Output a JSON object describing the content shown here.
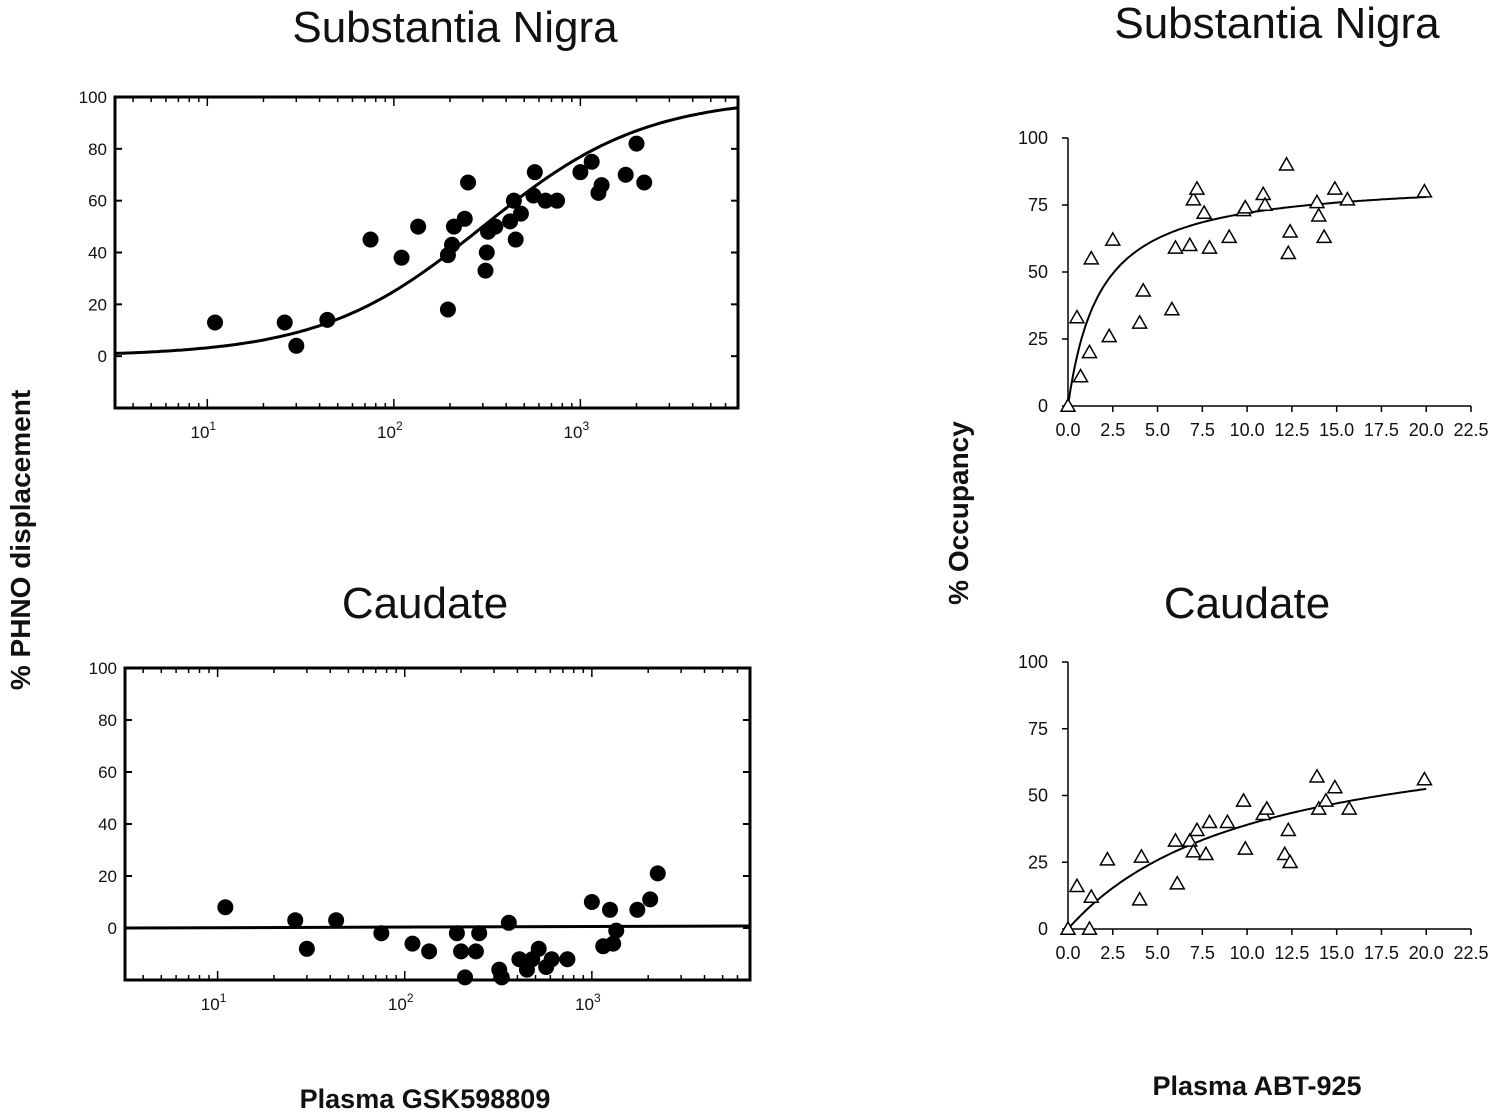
{
  "figure": {
    "left_ylabel": "% PHNO displacement",
    "right_ylabel": "% Occupancy",
    "left_xlabel": "Plasma GSK598809",
    "right_xlabel": "Plasma ABT-925"
  },
  "chart_data": [
    {
      "id": "sn_gsk",
      "type": "scatter",
      "title": "Substantia Nigra",
      "xscale": "log",
      "xlim": [
        3.2,
        7000
      ],
      "ylim": [
        -20,
        100
      ],
      "yticks": [
        0,
        20,
        40,
        60,
        80,
        100
      ],
      "xticks": [
        {
          "value": 10,
          "label": "10",
          "exp": "1"
        },
        {
          "value": 100,
          "label": "10",
          "exp": "2"
        },
        {
          "value": 1000,
          "label": "10",
          "exp": "3"
        }
      ],
      "marker": "filled-circle",
      "points": [
        [
          11,
          13
        ],
        [
          26,
          13
        ],
        [
          30,
          4
        ],
        [
          44,
          14
        ],
        [
          75,
          45
        ],
        [
          110,
          38
        ],
        [
          135,
          50
        ],
        [
          195,
          39
        ],
        [
          195,
          18
        ],
        [
          205,
          43
        ],
        [
          210,
          50
        ],
        [
          240,
          53
        ],
        [
          250,
          67
        ],
        [
          310,
          33
        ],
        [
          315,
          40
        ],
        [
          320,
          48
        ],
        [
          350,
          50
        ],
        [
          420,
          52
        ],
        [
          440,
          60
        ],
        [
          450,
          45
        ],
        [
          480,
          55
        ],
        [
          560,
          62
        ],
        [
          570,
          71
        ],
        [
          650,
          60
        ],
        [
          750,
          60
        ],
        [
          1000,
          71
        ],
        [
          1150,
          75
        ],
        [
          1250,
          63
        ],
        [
          1300,
          66
        ],
        [
          1750,
          70
        ],
        [
          2000,
          82
        ],
        [
          2200,
          67
        ]
      ],
      "curve": {
        "model": "emax",
        "emax": 100,
        "ec50": 300,
        "e0": 0
      }
    },
    {
      "id": "caudate_gsk",
      "type": "scatter",
      "title": "Caudate",
      "xscale": "log",
      "xlim": [
        3.2,
        7000
      ],
      "ylim": [
        -20,
        100
      ],
      "yticks": [
        0,
        20,
        40,
        60,
        80,
        100
      ],
      "xticks": [
        {
          "value": 10,
          "label": "10",
          "exp": "1"
        },
        {
          "value": 100,
          "label": "10",
          "exp": "2"
        },
        {
          "value": 1000,
          "label": "10",
          "exp": "3"
        }
      ],
      "marker": "filled-circle",
      "points": [
        [
          11,
          8
        ],
        [
          26,
          3
        ],
        [
          30,
          -8
        ],
        [
          43,
          3
        ],
        [
          75,
          -2
        ],
        [
          110,
          -6
        ],
        [
          135,
          -9
        ],
        [
          190,
          -2
        ],
        [
          200,
          -9
        ],
        [
          210,
          -19
        ],
        [
          240,
          -9
        ],
        [
          250,
          -2
        ],
        [
          320,
          -16
        ],
        [
          330,
          -19
        ],
        [
          360,
          2
        ],
        [
          410,
          -12
        ],
        [
          450,
          -16
        ],
        [
          480,
          -12
        ],
        [
          520,
          -8
        ],
        [
          570,
          -15
        ],
        [
          610,
          -12
        ],
        [
          740,
          -12
        ],
        [
          1000,
          10
        ],
        [
          1150,
          -7
        ],
        [
          1250,
          7
        ],
        [
          1300,
          -6
        ],
        [
          1350,
          -1
        ],
        [
          1750,
          7
        ],
        [
          2050,
          11
        ],
        [
          2250,
          21
        ]
      ],
      "curve": {
        "model": "flat",
        "e0": 0
      }
    },
    {
      "id": "sn_abt",
      "type": "scatter",
      "title": "Substantia Nigra",
      "xscale": "linear",
      "xlim": [
        0,
        22.5
      ],
      "ylim": [
        0,
        100
      ],
      "yticks": [
        0,
        25,
        50,
        75,
        100
      ],
      "xticks": [
        "0.0",
        "2.5",
        "5.0",
        "7.5",
        "10.0",
        "12.5",
        "15.0",
        "17.5",
        "20.0",
        "22.5"
      ],
      "marker": "open-triangle",
      "points": [
        [
          0,
          0
        ],
        [
          0.5,
          33
        ],
        [
          0.7,
          11
        ],
        [
          1.2,
          20
        ],
        [
          1.3,
          55
        ],
        [
          2.3,
          26
        ],
        [
          2.5,
          62
        ],
        [
          4.0,
          31
        ],
        [
          4.2,
          43
        ],
        [
          5.8,
          36
        ],
        [
          6.0,
          59
        ],
        [
          6.8,
          60
        ],
        [
          7.0,
          77
        ],
        [
          7.2,
          81
        ],
        [
          7.6,
          72
        ],
        [
          7.9,
          59
        ],
        [
          9.0,
          63
        ],
        [
          9.8,
          73
        ],
        [
          9.9,
          74
        ],
        [
          10.9,
          79
        ],
        [
          11.0,
          75
        ],
        [
          12.2,
          90
        ],
        [
          12.3,
          57
        ],
        [
          12.4,
          65
        ],
        [
          13.9,
          76
        ],
        [
          14.0,
          71
        ],
        [
          14.3,
          63
        ],
        [
          14.9,
          81
        ],
        [
          15.6,
          77
        ],
        [
          19.9,
          80
        ]
      ],
      "curve": {
        "model": "emax",
        "emax": 85,
        "ec50": 1.8,
        "xmax": 20
      }
    },
    {
      "id": "caudate_abt",
      "type": "scatter",
      "title": "Caudate",
      "xscale": "linear",
      "xlim": [
        0,
        22.5
      ],
      "ylim": [
        0,
        100
      ],
      "yticks": [
        0,
        25,
        50,
        75,
        100
      ],
      "xticks": [
        "0.0",
        "2.5",
        "5.0",
        "7.5",
        "10.0",
        "12.5",
        "15.0",
        "17.5",
        "20.0",
        "22.5"
      ],
      "marker": "open-triangle",
      "points": [
        [
          0,
          0
        ],
        [
          0.5,
          16
        ],
        [
          1.2,
          0
        ],
        [
          1.3,
          12
        ],
        [
          2.2,
          26
        ],
        [
          4.0,
          11
        ],
        [
          4.1,
          27
        ],
        [
          6.0,
          33
        ],
        [
          6.1,
          17
        ],
        [
          6.8,
          33
        ],
        [
          7.0,
          29
        ],
        [
          7.2,
          37
        ],
        [
          7.7,
          28
        ],
        [
          7.9,
          40
        ],
        [
          8.9,
          40
        ],
        [
          9.8,
          48
        ],
        [
          9.9,
          30
        ],
        [
          10.9,
          43
        ],
        [
          11.1,
          45
        ],
        [
          12.1,
          28
        ],
        [
          12.3,
          37
        ],
        [
          12.4,
          25
        ],
        [
          13.9,
          57
        ],
        [
          14.0,
          45
        ],
        [
          14.4,
          48
        ],
        [
          14.9,
          53
        ],
        [
          15.7,
          45
        ],
        [
          19.9,
          56
        ]
      ],
      "curve": {
        "model": "emax",
        "emax": 80,
        "ec50": 10.5,
        "xmax": 20
      }
    }
  ]
}
